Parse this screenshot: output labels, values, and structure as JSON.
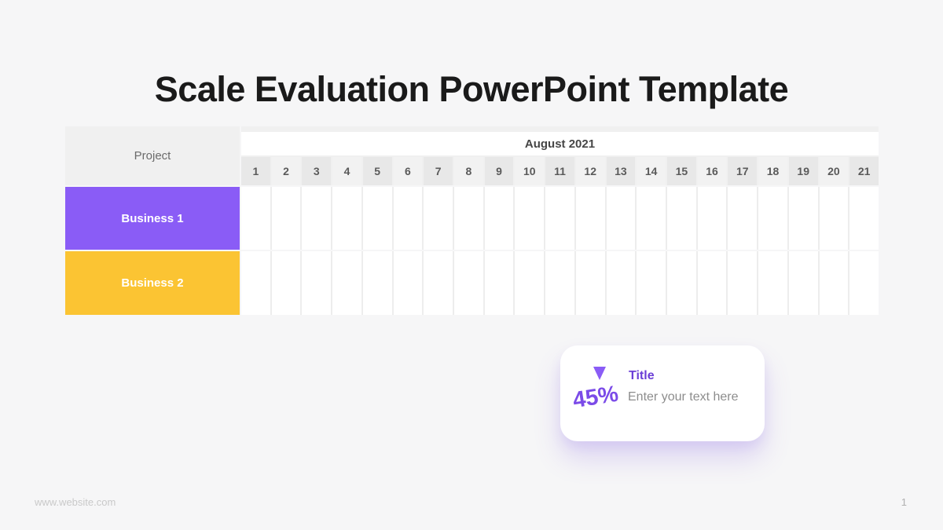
{
  "title": "Scale Evaluation PowerPoint Template",
  "gantt": {
    "project_label": "Project",
    "month_label": "August 2021",
    "days": [
      "1",
      "2",
      "3",
      "4",
      "5",
      "6",
      "7",
      "8",
      "9",
      "10",
      "11",
      "12",
      "13",
      "14",
      "15",
      "16",
      "17",
      "18",
      "19",
      "20",
      "21"
    ],
    "rows": [
      {
        "label": "Business 1",
        "color": "#8a5cf6"
      },
      {
        "label": "Business 2",
        "color": "#fbc433"
      }
    ]
  },
  "card": {
    "percent": "45%",
    "title": "Title",
    "subtitle": "Enter your text here",
    "accent_color": "#7b4be8",
    "triangle_color": "#8a5cf6"
  },
  "footer": {
    "website": "www.website.com",
    "page_number": "1"
  }
}
